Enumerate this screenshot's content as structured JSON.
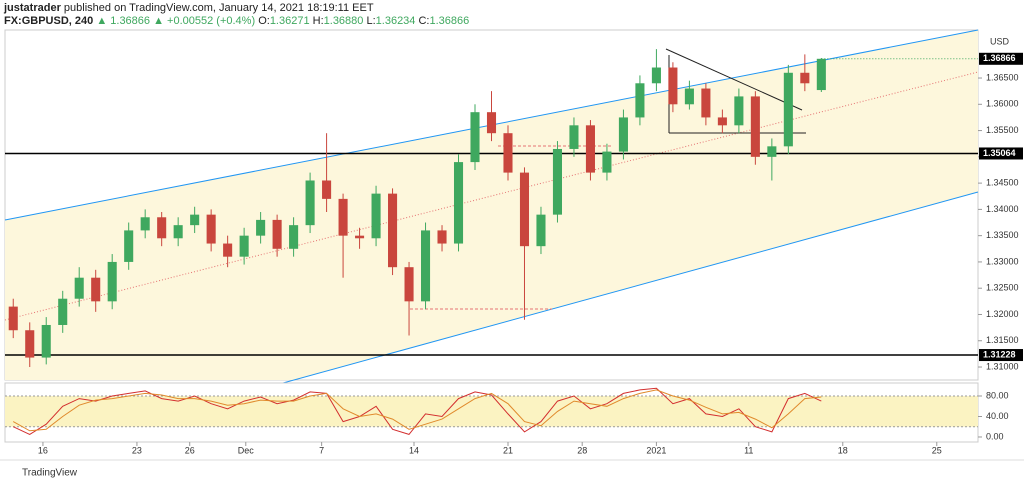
{
  "header": {
    "author": "justatrader",
    "published": "published on TradingView.com, January 14, 2021 18:19:11 EET",
    "symbol": "FX:GBPUSD, 240",
    "last": "1.36866",
    "change": "+0.00552 (+0.4%)",
    "quote": [
      {
        "label": "O:",
        "value": "1.36271"
      },
      {
        "label": "H:",
        "value": "1.36880"
      },
      {
        "label": "L:",
        "value": "1.36234"
      },
      {
        "label": "C:",
        "value": "1.36866"
      }
    ]
  },
  "footer": "TradingView",
  "chart_data": [
    {
      "type": "candlestick",
      "axis_label": "USD",
      "up_color": "#3fa85f",
      "down_color": "#c9463d",
      "open": [
        1.3215,
        1.317,
        1.3118,
        1.318,
        1.323,
        1.327,
        1.3225,
        1.33,
        1.336,
        1.3385,
        1.3345,
        1.337,
        1.339,
        1.3335,
        1.331,
        1.335,
        1.338,
        1.3325,
        1.337,
        1.3455,
        1.342,
        1.335,
        1.3345,
        1.343,
        1.329,
        1.3225,
        1.336,
        1.3335,
        1.349,
        1.3585,
        1.3545,
        1.347,
        1.333,
        1.339,
        1.3515,
        1.356,
        1.347,
        1.351,
        1.3575,
        1.364,
        1.367,
        1.36,
        1.363,
        1.3575,
        1.356,
        1.3615,
        1.35,
        1.352,
        1.366,
        1.36271
      ],
      "high": [
        1.323,
        1.3185,
        1.3195,
        1.3245,
        1.329,
        1.3285,
        1.3315,
        1.3375,
        1.34,
        1.3395,
        1.3385,
        1.3405,
        1.34,
        1.335,
        1.3365,
        1.3395,
        1.339,
        1.3385,
        1.347,
        1.3545,
        1.343,
        1.3365,
        1.3445,
        1.344,
        1.33,
        1.3375,
        1.337,
        1.3505,
        1.36,
        1.3625,
        1.356,
        1.348,
        1.3405,
        1.353,
        1.3575,
        1.357,
        1.3525,
        1.359,
        1.3655,
        1.3705,
        1.368,
        1.3645,
        1.364,
        1.359,
        1.363,
        1.3625,
        1.3535,
        1.3675,
        1.3695,
        1.3688
      ],
      "low": [
        1.3155,
        1.31,
        1.3105,
        1.3165,
        1.3215,
        1.3205,
        1.321,
        1.3285,
        1.3345,
        1.333,
        1.333,
        1.3355,
        1.332,
        1.329,
        1.3295,
        1.3335,
        1.331,
        1.331,
        1.3355,
        1.3395,
        1.327,
        1.3325,
        1.333,
        1.3275,
        1.316,
        1.321,
        1.332,
        1.332,
        1.3475,
        1.353,
        1.3455,
        1.319,
        1.3315,
        1.3375,
        1.35,
        1.3455,
        1.3455,
        1.3495,
        1.356,
        1.3625,
        1.3585,
        1.359,
        1.356,
        1.3545,
        1.3545,
        1.3485,
        1.3455,
        1.3505,
        1.3625,
        1.36234
      ],
      "close": [
        1.317,
        1.3118,
        1.318,
        1.323,
        1.327,
        1.3225,
        1.33,
        1.336,
        1.3385,
        1.3345,
        1.337,
        1.339,
        1.3335,
        1.331,
        1.335,
        1.338,
        1.3325,
        1.337,
        1.3455,
        1.342,
        1.335,
        1.3345,
        1.343,
        1.329,
        1.3225,
        1.336,
        1.3335,
        1.349,
        1.3585,
        1.3545,
        1.347,
        1.333,
        1.339,
        1.3515,
        1.356,
        1.347,
        1.351,
        1.3575,
        1.364,
        1.367,
        1.36,
        1.363,
        1.3575,
        1.356,
        1.3615,
        1.35,
        1.352,
        1.366,
        1.364,
        1.36866
      ],
      "xlim": [
        -0.5,
        58.5
      ],
      "xticks": [
        {
          "value": 1.8,
          "label": "16"
        },
        {
          "value": 7.5,
          "label": "23"
        },
        {
          "value": 10.7,
          "label": "26"
        },
        {
          "value": 14.1,
          "label": "Dec"
        },
        {
          "value": 18.7,
          "label": "7"
        },
        {
          "value": 24.3,
          "label": "14"
        },
        {
          "value": 30.0,
          "label": "21"
        },
        {
          "value": 34.5,
          "label": "28"
        },
        {
          "value": 39.0,
          "label": "2021"
        },
        {
          "value": 44.6,
          "label": "11"
        },
        {
          "value": 50.3,
          "label": "18"
        },
        {
          "value": 56.0,
          "label": "25"
        }
      ],
      "ylim": [
        1.30753,
        1.37414
      ],
      "yticks": [
        {
          "value": 1.31,
          "label": "1.31000"
        },
        {
          "value": 1.315,
          "label": "1.31500"
        },
        {
          "value": 1.32,
          "label": "1.32000"
        },
        {
          "value": 1.325,
          "label": "1.32500"
        },
        {
          "value": 1.33,
          "label": "1.33000"
        },
        {
          "value": 1.335,
          "label": "1.33500"
        },
        {
          "value": 1.34,
          "label": "1.34000"
        },
        {
          "value": 1.345,
          "label": "1.34500"
        },
        {
          "value": 1.35,
          "label": "1.35000"
        },
        {
          "value": 1.355,
          "label": "1.35500"
        },
        {
          "value": 1.36,
          "label": "1.36000"
        },
        {
          "value": 1.365,
          "label": "1.36500"
        }
      ],
      "price_lines": [
        1.35064,
        1.31228
      ],
      "last_price": 1.36866
    },
    {
      "type": "line",
      "band": [
        20,
        80
      ],
      "band_color": "#fbf3c2",
      "series": [
        {
          "color": "#d32f2f",
          "values": [
            20,
            5,
            25,
            60,
            75,
            70,
            80,
            85,
            90,
            75,
            70,
            80,
            65,
            55,
            70,
            78,
            65,
            72,
            88,
            85,
            30,
            40,
            60,
            15,
            5,
            45,
            40,
            75,
            88,
            82,
            45,
            10,
            30,
            70,
            80,
            55,
            65,
            85,
            92,
            95,
            65,
            75,
            45,
            40,
            55,
            20,
            10,
            75,
            85,
            70
          ]
        },
        {
          "color": "#e08a2c",
          "values": [
            30,
            12,
            15,
            40,
            62,
            72,
            75,
            80,
            85,
            82,
            75,
            75,
            70,
            62,
            65,
            72,
            70,
            70,
            80,
            85,
            55,
            40,
            45,
            35,
            15,
            25,
            35,
            55,
            75,
            85,
            65,
            30,
            22,
            50,
            70,
            65,
            60,
            75,
            85,
            92,
            80,
            72,
            58,
            45,
            48,
            35,
            18,
            45,
            75,
            78
          ]
        }
      ],
      "ylim": [
        -9.8,
        105.4
      ],
      "yticks": [
        {
          "value": 80,
          "label": "80.00"
        },
        {
          "value": 40,
          "label": "40.00"
        },
        {
          "value": 0,
          "label": "0.00"
        }
      ]
    }
  ]
}
